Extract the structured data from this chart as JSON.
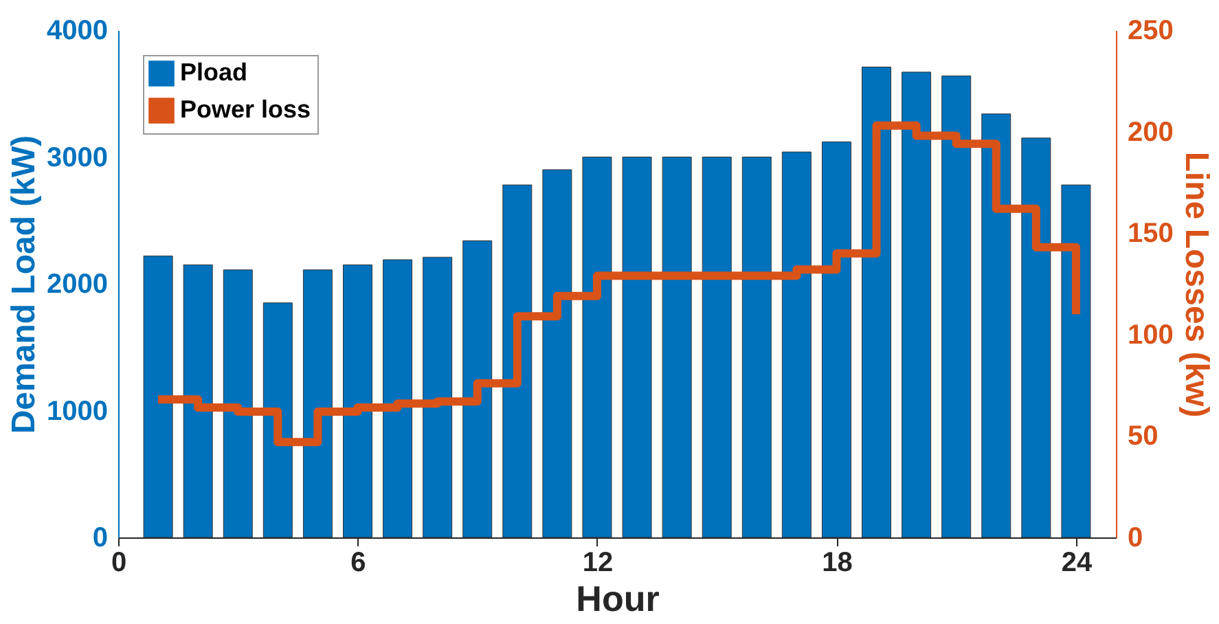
{
  "chart_data": {
    "type": "bar",
    "xlabel": "Hour",
    "ylabel": "Demand Load (kW)",
    "y2label": "Line Losses (kw)",
    "x": [
      1,
      2,
      3,
      4,
      5,
      6,
      7,
      8,
      9,
      10,
      11,
      12,
      13,
      14,
      15,
      16,
      17,
      18,
      19,
      20,
      21,
      22,
      23,
      24
    ],
    "series": [
      {
        "name": "Pload",
        "color": "#0072bd",
        "values": [
          2220,
          2150,
          2110,
          1850,
          2110,
          2150,
          2190,
          2210,
          2340,
          2780,
          2900,
          3000,
          3000,
          3000,
          3000,
          3000,
          3040,
          3120,
          3710,
          3670,
          3640,
          3340,
          3150,
          2780
        ]
      },
      {
        "name": "Power loss",
        "type": "step",
        "axis": "y2",
        "color": "#d95319",
        "values": [
          68,
          64,
          62,
          47,
          62,
          64,
          66,
          67,
          76,
          109,
          119,
          129,
          129,
          129,
          129,
          129,
          132,
          140,
          203,
          198,
          194,
          162,
          143,
          110
        ]
      }
    ],
    "xlim": [
      0,
      25
    ],
    "xticks": [
      0,
      6,
      12,
      18,
      24
    ],
    "ylim": [
      0,
      4000
    ],
    "yticks": [
      0,
      1000,
      2000,
      3000,
      4000
    ],
    "y2lim": [
      0,
      250
    ],
    "y2ticks": [
      0,
      50,
      100,
      150,
      200,
      250
    ],
    "legend": "top left",
    "grid": false
  }
}
